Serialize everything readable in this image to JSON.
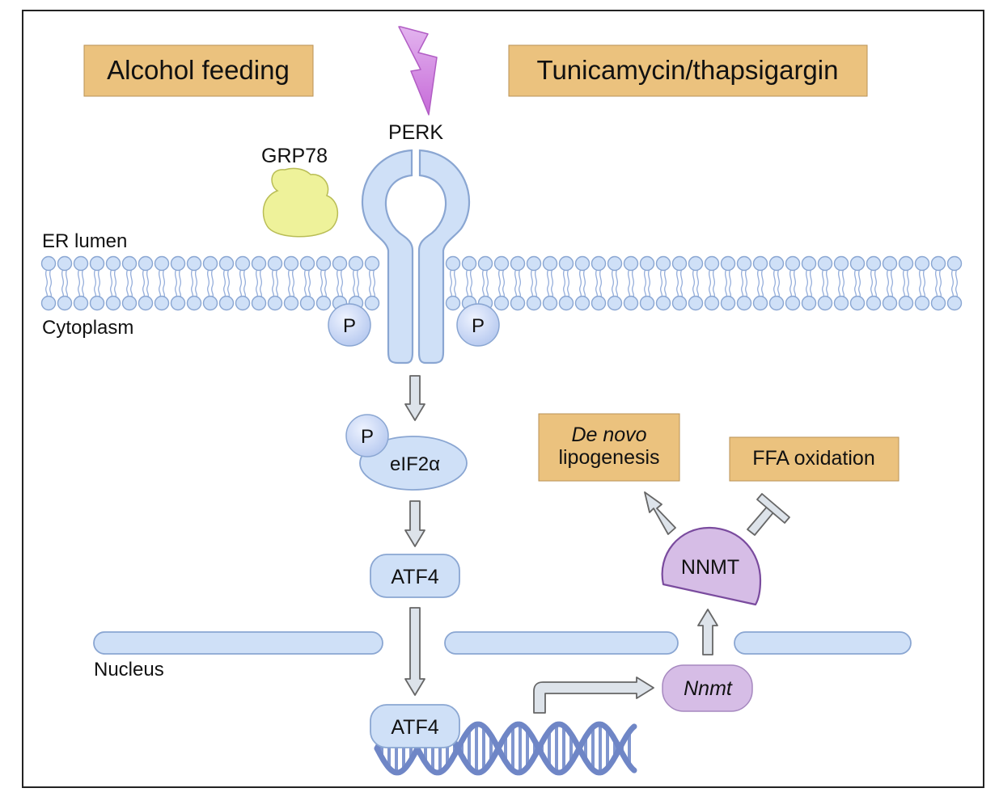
{
  "stimuli": {
    "alcohol": "Alcohol feeding",
    "er_stress_drugs": "Tunicamycin/thapsigargin"
  },
  "proteins": {
    "perk": "PERK",
    "grp78": "GRP78",
    "eif2a": "eIF2α",
    "atf4_cytoplasm": "ATF4",
    "atf4_nucleus": "ATF4",
    "nnmt_protein": "NNMT",
    "nnmt_gene": "Nnmt"
  },
  "phospho": {
    "perk_left": "P",
    "perk_right": "P",
    "eif2a": "P"
  },
  "compartments": {
    "er_lumen": "ER lumen",
    "cytoplasm": "Cytoplasm",
    "nucleus": "Nucleus"
  },
  "outcomes": {
    "lipogenesis_italic": "De novo",
    "lipogenesis_rest": "lipogenesis",
    "ffa": "FFA oxidation"
  },
  "colors": {
    "stimulus_box": "#ebc27e",
    "blue_fill": "#cfe0f7",
    "blue_stroke": "#8aa6d2",
    "purple_protein": "#d6bde6",
    "purple_stroke": "#7a4b9e",
    "lightning": "#d9a6e8",
    "grp78": "#eef29a",
    "dna": "#8096cf",
    "arrow_fill": "#dde3ea",
    "arrow_stroke": "#666666"
  }
}
